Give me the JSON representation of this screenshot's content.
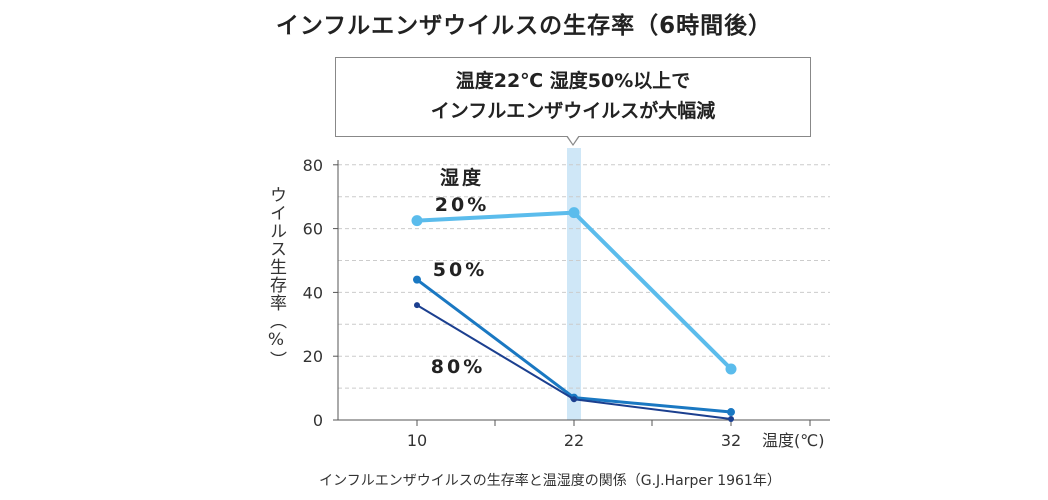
{
  "chart_data": {
    "type": "line",
    "title": "インフルエンザウイルスの生存率（6時間後）",
    "caption": "インフルエンザウイルスの生存率と温湿度の関係（G.J.Harper 1961年）",
    "callout": [
      "温度22℃ 湿度50%以上で",
      "インフルエンザウイルスが大幅減"
    ],
    "xlabel": "温度(℃)",
    "ylabel": "ウイルス生存率（%）",
    "x": [
      10,
      22,
      32
    ],
    "xticks": [
      "10",
      "22",
      "32"
    ],
    "yticks": [
      "0",
      "20",
      "40",
      "60",
      "80"
    ],
    "ylim": [
      0,
      85
    ],
    "grid": true,
    "highlight_x": 22,
    "series": [
      {
        "name": "湿度\n20%",
        "values": [
          62.5,
          65,
          16
        ],
        "color": "#5bbcec"
      },
      {
        "name": "50%",
        "values": [
          44,
          7,
          2.5
        ],
        "color": "#1a78c2"
      },
      {
        "name": "80%",
        "values": [
          36,
          6.5,
          0.3
        ],
        "color": "#1b3f8f"
      }
    ]
  }
}
